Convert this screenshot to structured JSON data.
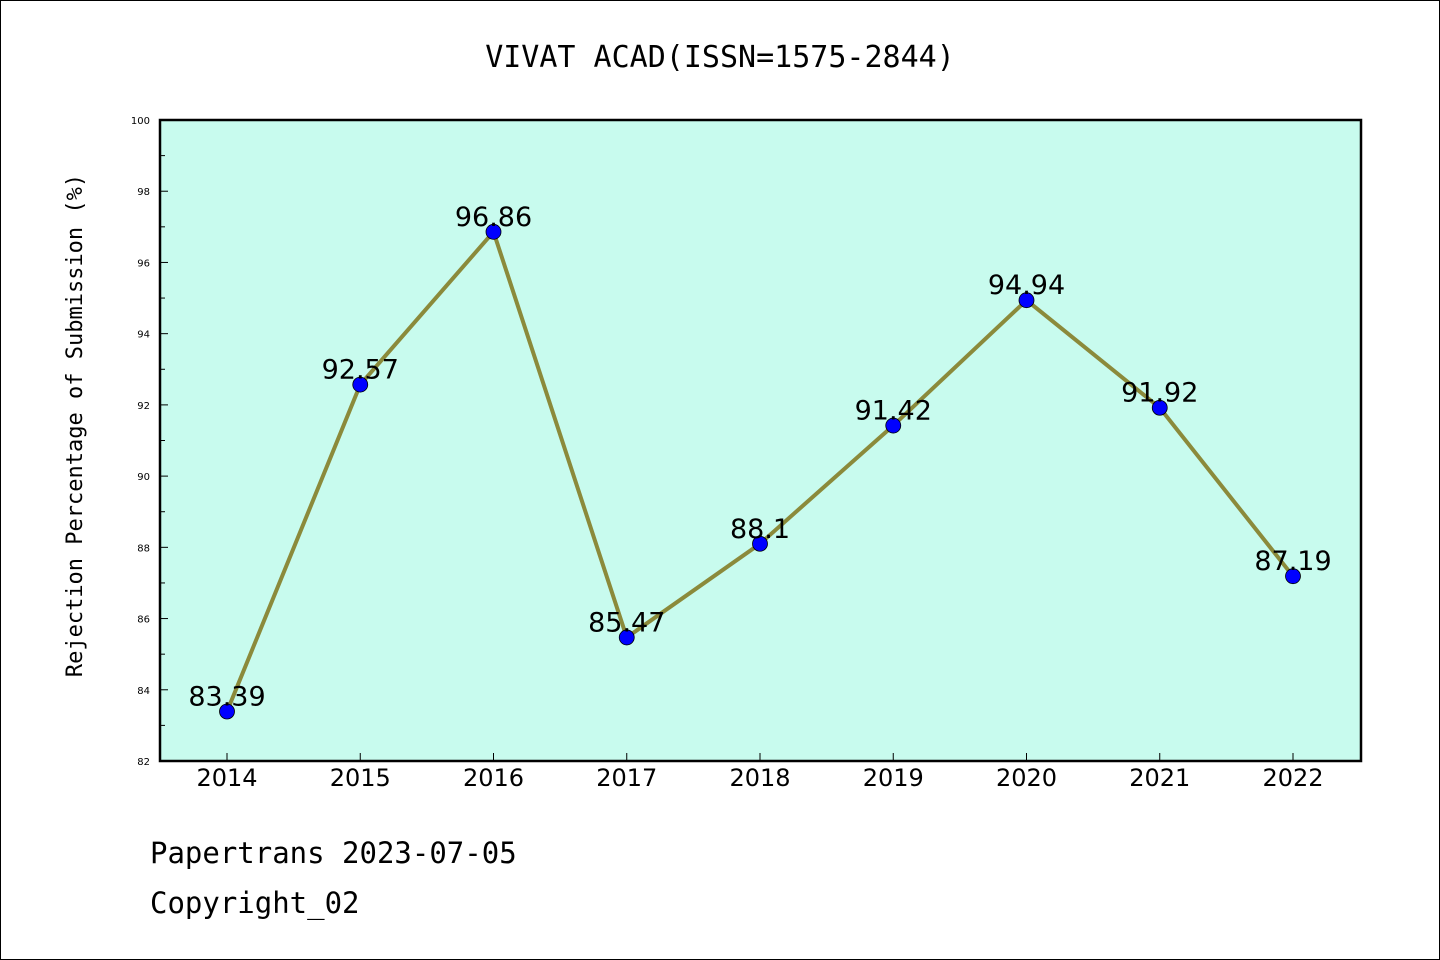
{
  "chart_data": {
    "type": "line",
    "title": "VIVAT ACAD(ISSN=1575-2844)",
    "xlabel": "",
    "ylabel": "Rejection Percentage of Submission (%)",
    "categories": [
      "2014",
      "2015",
      "2016",
      "2017",
      "2018",
      "2019",
      "2020",
      "2021",
      "2022"
    ],
    "series": [
      {
        "values": [
          83.39,
          92.57,
          96.86,
          85.47,
          88.1,
          91.42,
          94.94,
          91.92,
          87.19
        ],
        "labels": [
          "83.39",
          "92.57",
          "96.86",
          "85.47",
          "88.1",
          "91.42",
          "94.94",
          "91.92",
          "87.19"
        ]
      }
    ],
    "ylim": [
      82,
      100
    ],
    "yticks": [
      "82",
      "84",
      "86",
      "88",
      "90",
      "92",
      "94",
      "96",
      "98",
      "100"
    ],
    "grid": false,
    "legend": "none",
    "colors": {
      "plot_background": "#c8fbee",
      "line": "#8b8a3b",
      "marker": "#0000ff"
    }
  },
  "footer": {
    "source": "Papertrans 2023-07-05",
    "copyright": "Copyright_02"
  }
}
